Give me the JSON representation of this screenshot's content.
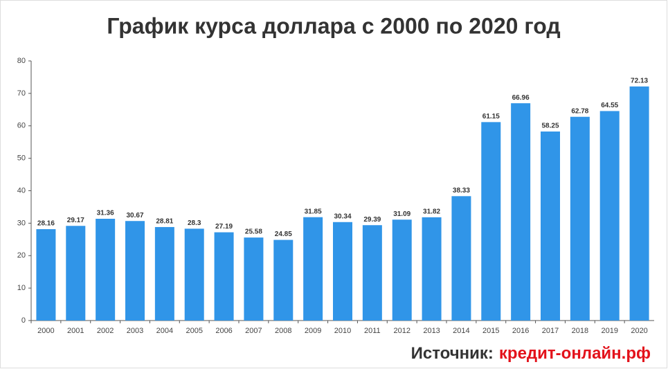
{
  "chart_data": {
    "type": "bar",
    "title": "График курса доллара с 2000 по 2020 год",
    "categories": [
      "2000",
      "2001",
      "2002",
      "2003",
      "2004",
      "2005",
      "2006",
      "2007",
      "2008",
      "2009",
      "2010",
      "2011",
      "2012",
      "2013",
      "2014",
      "2015",
      "2016",
      "2017",
      "2018",
      "2019",
      "2020"
    ],
    "values": [
      28.16,
      29.17,
      31.36,
      30.67,
      28.81,
      28.3,
      27.19,
      25.58,
      24.85,
      31.85,
      30.34,
      29.39,
      31.09,
      31.82,
      38.33,
      61.15,
      66.96,
      58.25,
      62.78,
      64.55,
      72.13
    ],
    "color": "#3095e8",
    "ylim": [
      0,
      80
    ],
    "yticks": [
      0,
      10,
      20,
      30,
      40,
      50,
      60,
      70,
      80
    ],
    "grid": false,
    "source_label": "Источник:",
    "source": "кредит-онлайн.рф"
  }
}
